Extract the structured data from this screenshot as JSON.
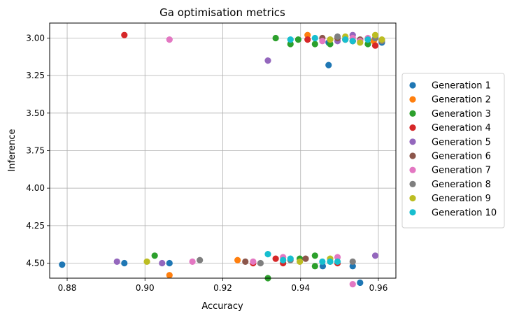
{
  "chart_data": {
    "type": "scatter",
    "title": "Ga optimisation metrics",
    "xlabel": "Accuracy",
    "ylabel": "Inference",
    "xlim": [
      0.8755,
      0.9645
    ],
    "ylim": [
      4.6,
      2.9
    ],
    "y_inverted": true,
    "xticks": [
      0.88,
      0.9,
      0.92,
      0.94,
      0.96
    ],
    "xtick_labels": [
      "0.88",
      "0.90",
      "0.92",
      "0.94",
      "0.96"
    ],
    "yticks": [
      3.0,
      3.25,
      3.5,
      3.75,
      4.0,
      4.25,
      4.5
    ],
    "ytick_labels": [
      "3.00",
      "3.25",
      "3.50",
      "3.75",
      "4.00",
      "4.25",
      "4.50"
    ],
    "grid": true,
    "legend_position": "right",
    "series": [
      {
        "name": "Generation 1",
        "color": "#1f77b4",
        "points": [
          [
            0.8787,
            4.51
          ],
          [
            0.8947,
            4.5
          ],
          [
            0.9063,
            4.5
          ],
          [
            0.9472,
            3.18
          ],
          [
            0.9457,
            4.52
          ],
          [
            0.9534,
            4.52
          ],
          [
            0.9553,
            4.63
          ],
          [
            0.9472,
            3.03
          ],
          [
            0.9609,
            3.03
          ]
        ]
      },
      {
        "name": "Generation 2",
        "color": "#ff7f0e",
        "points": [
          [
            0.9063,
            4.58
          ],
          [
            0.9238,
            4.48
          ],
          [
            0.9418,
            2.98
          ],
          [
            0.9476,
            4.49
          ],
          [
            0.9515,
            3.01
          ],
          [
            0.9588,
            3.02
          ]
        ]
      },
      {
        "name": "Generation 3",
        "color": "#2ca02c",
        "points": [
          [
            0.9025,
            4.45
          ],
          [
            0.9316,
            4.6
          ],
          [
            0.9336,
            3.0
          ],
          [
            0.9374,
            3.04
          ],
          [
            0.9394,
            3.01
          ],
          [
            0.9398,
            4.47
          ],
          [
            0.9437,
            4.45
          ],
          [
            0.9437,
            4.52
          ],
          [
            0.9437,
            3.04
          ],
          [
            0.9476,
            3.04
          ],
          [
            0.9534,
            3.02
          ],
          [
            0.9573,
            3.04
          ]
        ]
      },
      {
        "name": "Generation 4",
        "color": "#d62728",
        "points": [
          [
            0.8947,
            2.98
          ],
          [
            0.9278,
            4.5
          ],
          [
            0.9336,
            4.47
          ],
          [
            0.9355,
            4.5
          ],
          [
            0.9418,
            3.01
          ],
          [
            0.9495,
            4.5
          ],
          [
            0.9534,
            3.02
          ],
          [
            0.9592,
            3.05
          ]
        ]
      },
      {
        "name": "Generation 5",
        "color": "#9467bd",
        "points": [
          [
            0.8928,
            4.49
          ],
          [
            0.9044,
            4.5
          ],
          [
            0.9316,
            3.15
          ],
          [
            0.9495,
            3.02
          ],
          [
            0.9534,
            2.98
          ],
          [
            0.9592,
            4.45
          ]
        ]
      },
      {
        "name": "Generation 6",
        "color": "#8c564b",
        "points": [
          [
            0.9258,
            4.49
          ],
          [
            0.9413,
            4.47
          ],
          [
            0.9456,
            3.0
          ],
          [
            0.9495,
            3.0
          ],
          [
            0.9553,
            3.01
          ]
        ]
      },
      {
        "name": "Generation 7",
        "color": "#e377c2",
        "points": [
          [
            0.9063,
            3.01
          ],
          [
            0.9122,
            4.49
          ],
          [
            0.9278,
            4.49
          ],
          [
            0.9355,
            4.46
          ],
          [
            0.9456,
            3.02
          ],
          [
            0.9495,
            4.46
          ],
          [
            0.9534,
            4.64
          ],
          [
            0.9534,
            3.0
          ],
          [
            0.9553,
            3.02
          ],
          [
            0.9573,
            3.0
          ]
        ]
      },
      {
        "name": "Generation 8",
        "color": "#7f7f7f",
        "points": [
          [
            0.9141,
            4.48
          ],
          [
            0.9297,
            4.5
          ],
          [
            0.9374,
            4.48
          ],
          [
            0.9476,
            3.01
          ],
          [
            0.9495,
            2.99
          ],
          [
            0.9534,
            4.49
          ],
          [
            0.9592,
            3.0
          ],
          [
            0.9609,
            3.02
          ]
        ]
      },
      {
        "name": "Generation 9",
        "color": "#bcbd22",
        "points": [
          [
            0.9005,
            4.49
          ],
          [
            0.9398,
            4.49
          ],
          [
            0.9476,
            4.47
          ],
          [
            0.9515,
            2.99
          ],
          [
            0.9553,
            3.03
          ],
          [
            0.9592,
            2.98
          ],
          [
            0.9609,
            3.01
          ],
          [
            0.9476,
            3.01
          ]
        ]
      },
      {
        "name": "Generation 10",
        "color": "#17becf",
        "points": [
          [
            0.9316,
            4.44
          ],
          [
            0.9355,
            4.48
          ],
          [
            0.9374,
            3.01
          ],
          [
            0.9374,
            4.47
          ],
          [
            0.9437,
            3.0
          ],
          [
            0.9456,
            4.49
          ],
          [
            0.9476,
            4.49
          ],
          [
            0.9495,
            4.49
          ],
          [
            0.9515,
            3.01
          ],
          [
            0.9534,
            3.02
          ],
          [
            0.9573,
            3.01
          ]
        ]
      }
    ]
  }
}
